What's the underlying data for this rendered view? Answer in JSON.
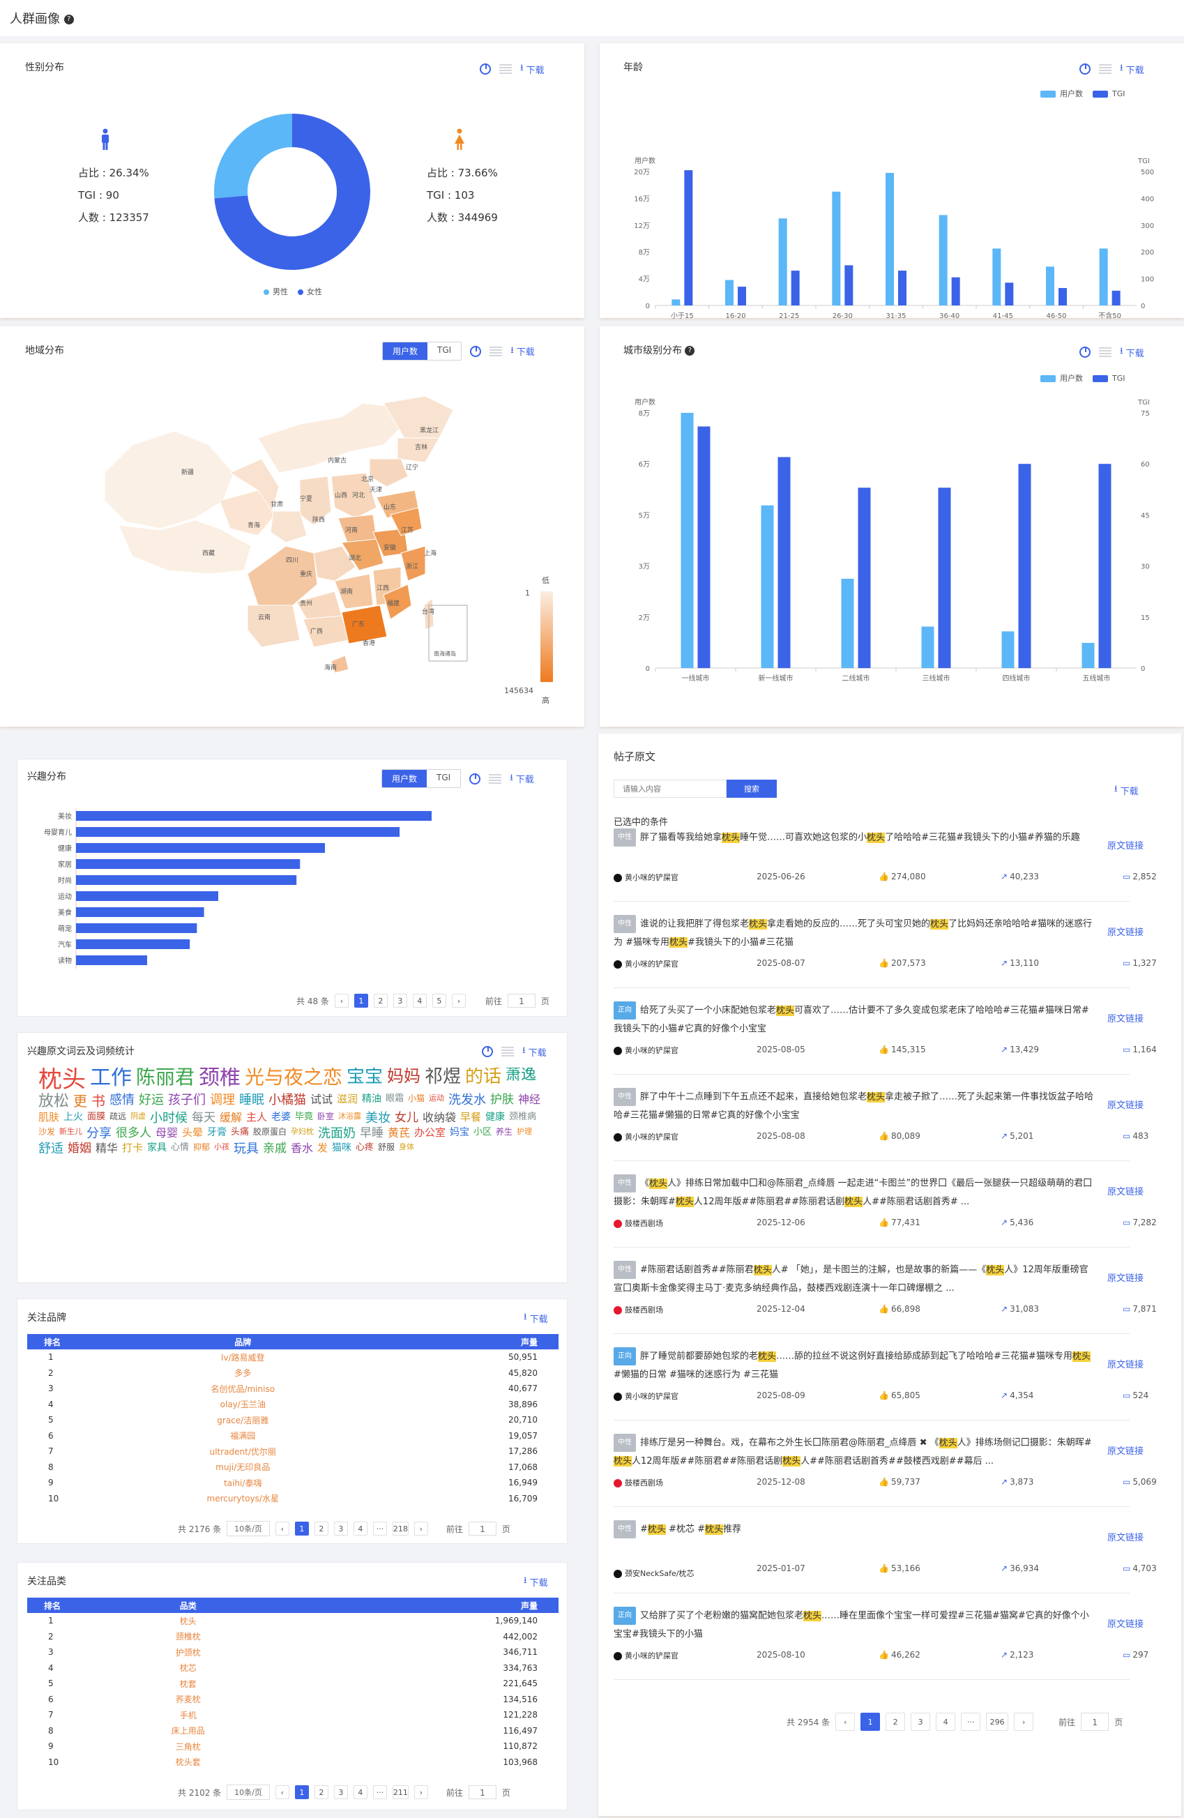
{
  "header": {
    "title": "人群画像",
    "help_icon": "question-circle-icon"
  },
  "common": {
    "download": "下载"
  },
  "gender": {
    "title": "性别分布",
    "male": {
      "share": "占比 : 26.34%",
      "tgi": "TGI : 90",
      "count": "人数 : 123357",
      "pct": 26.34,
      "color": "#5bb7f7"
    },
    "female": {
      "share": "占比 : 73.66%",
      "tgi": "TGI : 103",
      "count": "人数 : 344969",
      "pct": 73.66,
      "color": "#3b63e8"
    },
    "legend": [
      "男性",
      "女性"
    ]
  },
  "age": {
    "title": "年龄",
    "legend": [
      "用户数",
      "TGI"
    ],
    "y_left_label": "用户数",
    "y_right_label": "TGI",
    "y_left_ticks": [
      "0",
      "4万",
      "8万",
      "12万",
      "16万",
      "20万"
    ],
    "y_right_ticks": [
      "0",
      "100",
      "200",
      "300",
      "400",
      "500"
    ]
  },
  "region": {
    "title": "地域分布",
    "tabs": [
      "用户数",
      "TGI"
    ],
    "scale_low": "低",
    "scale_high": "高",
    "scale_min": "1",
    "scale_max": "145634",
    "provinces": [
      "新疆",
      "西藏",
      "青海",
      "甘肃",
      "宁夏",
      "内蒙古",
      "黑龙江",
      "吉林",
      "辽宁",
      "北京",
      "天津",
      "河北",
      "山西",
      "陕西",
      "山东",
      "河南",
      "四川",
      "重庆",
      "湖北",
      "安徽",
      "江苏",
      "上海",
      "浙江",
      "湖南",
      "江西",
      "贵州",
      "云南",
      "广西",
      "广东",
      "福建",
      "台湾",
      "海南",
      "香港"
    ],
    "inset": "南海诸岛"
  },
  "city_level": {
    "title": "城市级别分布",
    "legend": [
      "用户数",
      "TGI"
    ],
    "y_left_label": "用户数",
    "y_right_label": "TGI",
    "y_left_ticks": [
      "0",
      "2万",
      "3万",
      "5万",
      "6万",
      "8万"
    ],
    "y_right_ticks": [
      "0",
      "15",
      "30",
      "45",
      "60",
      "75"
    ]
  },
  "interest": {
    "title": "兴趣分布",
    "tabs": [
      "用户数",
      "TGI"
    ],
    "total": "共 48 条",
    "pages": [
      "1",
      "2",
      "3",
      "4",
      "5"
    ],
    "goto_label": "前往",
    "goto_value": "1",
    "page_unit": "页"
  },
  "wordcloud": {
    "title": "兴趣原文词云及词频统计",
    "words": [
      "枕头",
      "工作",
      "陈丽君",
      "颈椎",
      "光与夜之恋",
      "宝宝",
      "妈妈",
      "祁煜",
      "的话",
      "萧逸",
      "放松",
      "更",
      "书",
      "感情",
      "好运",
      "孩子们",
      "调理",
      "睡眠",
      "小橘猫",
      "试试",
      "滋润",
      "精油",
      "眼霜",
      "小猫",
      "运动",
      "洗发水",
      "护肤",
      "神经",
      "肌肤",
      "上火",
      "面膜",
      "疏远",
      "阴虚",
      "小时候",
      "每天",
      "缓解",
      "主人",
      "老婆",
      "毕竟",
      "卧室",
      "沐浴露",
      "美妆",
      "女儿",
      "收纳袋",
      "早餐",
      "健康",
      "颈椎病",
      "沙发",
      "新生儿",
      "分享",
      "很多人",
      "母婴",
      "头晕",
      "牙膏",
      "头痛",
      "胶原蛋白",
      "孕妇枕",
      "洗面奶",
      "早睡",
      "黄芪",
      "办公室",
      "妈宝",
      "小区",
      "养生",
      "护理",
      "舒适",
      "婚姻",
      "精华",
      "打卡",
      "家具",
      "心情",
      "抑郁",
      "小孩",
      "玩具",
      "亲戚",
      "香水",
      "发",
      "猫咪",
      "心疼",
      "舒服",
      "身体"
    ]
  },
  "brands": {
    "title": "关注品牌",
    "headers": [
      "排名",
      "品牌",
      "声量"
    ],
    "rows": [
      [
        "1",
        "lv/路易威登",
        "50,951"
      ],
      [
        "2",
        "多多",
        "45,820"
      ],
      [
        "3",
        "名创优品/miniso",
        "40,677"
      ],
      [
        "4",
        "olay/玉兰油",
        "38,896"
      ],
      [
        "5",
        "grace/洁丽雅",
        "20,710"
      ],
      [
        "6",
        "福满园",
        "19,057"
      ],
      [
        "7",
        "ultradent/优尔丽",
        "17,286"
      ],
      [
        "8",
        "muji/无印良品",
        "17,068"
      ],
      [
        "9",
        "taihi/泰嗨",
        "16,949"
      ],
      [
        "10",
        "mercurytoys/水星",
        "16,709"
      ]
    ],
    "total": "共 2176 条",
    "page_size": "10条/页",
    "pages": [
      "1",
      "2",
      "3",
      "4",
      "···",
      "218"
    ],
    "goto_label": "前往",
    "goto_value": "1",
    "page_unit": "页"
  },
  "categories": {
    "title": "关注品类",
    "headers": [
      "排名",
      "品类",
      "声量"
    ],
    "rows": [
      [
        "1",
        "枕头",
        "1,969,140"
      ],
      [
        "2",
        "颈椎枕",
        "442,002"
      ],
      [
        "3",
        "护颈枕",
        "346,711"
      ],
      [
        "4",
        "枕芯",
        "334,763"
      ],
      [
        "5",
        "枕套",
        "221,645"
      ],
      [
        "6",
        "荞麦枕",
        "134,516"
      ],
      [
        "7",
        "手机",
        "121,228"
      ],
      [
        "8",
        "床上用品",
        "116,497"
      ],
      [
        "9",
        "三角枕",
        "110,872"
      ],
      [
        "10",
        "枕头套",
        "103,968"
      ]
    ],
    "total": "共 2102 条",
    "page_size": "10条/页",
    "pages": [
      "1",
      "2",
      "3",
      "4",
      "···",
      "211"
    ],
    "goto_label": "前往",
    "goto_value": "1",
    "page_unit": "页"
  },
  "posts": {
    "title": "帖子原文",
    "search_placeholder": "请输入内容",
    "search_button": "搜索",
    "selected_label": "已选中的条件",
    "link_label": "原文链接",
    "items": [
      {
        "sentiment": "中性",
        "type": "neutral",
        "html": "胖了猫看等我给她拿<span class='hl'>枕头</span>睡午觉……可喜欢她这包浆的小<span class='hl'>枕头</span>了哈哈哈#三花猫#我镜头下的小猫#养猫的乐趣",
        "source": "黄小咪的铲屎官",
        "src": "douyin",
        "date": "2025-06-26",
        "likes": "274,080",
        "shares": "40,233",
        "comments": "2,852"
      },
      {
        "sentiment": "中性",
        "type": "neutral",
        "html": "谁说的让我把胖了得包浆老<span class='hl'>枕头</span>拿走看她的反应的……死了头可宝贝她的<span class='hl'>枕头</span>了比妈妈还亲哈哈哈#猫咪的迷惑行为 #猫咪专用<span class='hl'>枕头</span>#我镜头下的小猫#三花猫",
        "source": "黄小咪的铲屎官",
        "src": "douyin",
        "date": "2025-08-07",
        "likes": "207,573",
        "shares": "13,110",
        "comments": "1,327"
      },
      {
        "sentiment": "正向",
        "type": "positive",
        "html": "给死了头买了一个小床配她包浆老<span class='hl'>枕头</span>可喜欢了……估计要不了多久变成包浆老床了哈哈哈#三花猫#猫咪日常#我镜头下的小猫#它真的好像个小宝宝",
        "source": "黄小咪的铲屎官",
        "src": "douyin",
        "date": "2025-08-05",
        "likes": "145,315",
        "shares": "13,429",
        "comments": "1,164"
      },
      {
        "sentiment": "中性",
        "type": "neutral",
        "html": "胖了中午十二点睡到下午五点还不起来，直接给她包浆老<span class='hl'>枕头</span>拿走被子掀了……死了头起来第一件事找饭盆子哈哈哈#三花猫#懒猫的日常#它真的好像个小宝宝",
        "source": "黄小咪的铲屎官",
        "src": "douyin",
        "date": "2025-08-08",
        "likes": "80,089",
        "shares": "5,201",
        "comments": "483"
      },
      {
        "sentiment": "中性",
        "type": "neutral",
        "html": "《<span class='hl'>枕头</span>人》排练日常加载中囗和@陈丽君_点绛唇 一起走进“卡图兰”的世界囗《最后一张腿获一只超级萌萌的君囗摄影：朱朝晖#<span class='hl'>枕头</span>人12周年版##陈丽君##陈丽君话剧<span class='hl'>枕头</span>人##陈丽君话剧首秀# ...",
        "source": "鼓楼西剧场",
        "src": "weibo",
        "date": "2025-12-06",
        "likes": "77,431",
        "shares": "5,436",
        "comments": "7,282"
      },
      {
        "sentiment": "中性",
        "type": "neutral",
        "html": "#陈丽君话剧首秀##陈丽君<span class='hl'>枕头</span>人# 「她」，是卡图兰的注解，也是故事的新篇——《<span class='hl'>枕头</span>人》12周年版重磅官宣囗奥斯卡金像奖得主马丁·麦克多纳经典作品，鼓楼西戏剧连演十一年口碑爆棚之 ...",
        "source": "鼓楼西剧场",
        "src": "weibo",
        "date": "2025-12-04",
        "likes": "66,898",
        "shares": "31,083",
        "comments": "7,871"
      },
      {
        "sentiment": "正向",
        "type": "positive",
        "html": "胖了睡觉前都要舔她包浆的老<span class='hl'>枕头</span>……舔的拉丝不说这例好直接给舔成舔到起飞了哈哈哈#三花猫#猫咪专用<span class='hl'>枕头</span>#懒猫的日常 #猫咪的迷惑行为 #三花猫",
        "source": "黄小咪的铲屎官",
        "src": "douyin",
        "date": "2025-08-09",
        "likes": "65,805",
        "shares": "4,354",
        "comments": "524"
      },
      {
        "sentiment": "中性",
        "type": "neutral",
        "html": "排练厅是另一种舞台。戏，在幕布之外生长囗陈丽君@陈丽君_点绛唇 ✖ 《<span class='hl'>枕头</span>人》排练场侧记囗摄影：朱朝晖#<span class='hl'>枕头</span>人12周年版##陈丽君##陈丽君话剧<span class='hl'>枕头</span>人##陈丽君话剧首秀##鼓楼西戏剧##幕后 ...",
        "source": "鼓楼西剧场",
        "src": "weibo",
        "date": "2025-12-08",
        "likes": "59,737",
        "shares": "3,873",
        "comments": "5,069"
      },
      {
        "sentiment": "中性",
        "type": "neutral",
        "html": "#<span class='hl'>枕头</span> #枕芯 #<span class='hl'>枕头</span>推荐",
        "source": "颈安NeckSafe/枕芯",
        "src": "douyin",
        "date": "2025-01-07",
        "likes": "53,166",
        "shares": "36,934",
        "comments": "4,703"
      },
      {
        "sentiment": "正向",
        "type": "positive",
        "html": "又给胖了买了个老粉嫩的猫窝配她包浆老<span class='hl'>枕头</span>……睡在里面像个宝宝一样可爱捏#三花猫#猫窝#它真的好像个小宝宝#我镜头下的小猫",
        "source": "黄小咪的铲屎官",
        "src": "douyin",
        "date": "2025-08-10",
        "likes": "46,262",
        "shares": "2,123",
        "comments": "297"
      }
    ],
    "total": "共 2954 条",
    "pages": [
      "1",
      "2",
      "3",
      "4",
      "···",
      "296"
    ],
    "goto_label": "前往",
    "goto_value": "1",
    "page_unit": "页"
  },
  "chart_data": [
    {
      "type": "bar",
      "title": "年龄",
      "categories": [
        "小于15",
        "16-20",
        "21-25",
        "26-30",
        "31-35",
        "36-40",
        "41-45",
        "46-50",
        "不含50"
      ],
      "series": [
        {
          "name": "用户数",
          "axis": "left",
          "color": "#5bb7f7",
          "values": [
            9000,
            38000,
            130000,
            170000,
            198000,
            135000,
            85000,
            58000,
            85000
          ]
        },
        {
          "name": "TGI",
          "axis": "right",
          "color": "#3b63e8",
          "values": [
            505,
            70,
            130,
            150,
            130,
            105,
            85,
            65,
            55
          ]
        }
      ],
      "ylim_left": [
        0,
        200000
      ],
      "ylim_right": [
        0,
        500
      ]
    },
    {
      "type": "bar",
      "title": "城市级别分布",
      "categories": [
        "一线城市",
        "新一线城市",
        "二线城市",
        "三线城市",
        "四线城市",
        "五线城市"
      ],
      "series": [
        {
          "name": "用户数",
          "axis": "left",
          "color": "#5bb7f7",
          "values": [
            80000,
            51000,
            28000,
            13000,
            11500,
            7900
          ]
        },
        {
          "name": "TGI",
          "axis": "right",
          "color": "#3b63e8",
          "values": [
            71,
            62,
            53,
            53,
            60,
            60
          ]
        }
      ],
      "ylim_left": [
        0,
        80000
      ],
      "ylim_right": [
        0,
        75
      ]
    },
    {
      "type": "bar",
      "title": "兴趣分布",
      "categories": [
        "美妆",
        "母婴育儿",
        "健康",
        "家居",
        "时尚",
        "运动",
        "美食",
        "萌宠",
        "汽车",
        "读物"
      ],
      "values": [
        100,
        91,
        70,
        63,
        62,
        40,
        36,
        34,
        32,
        20
      ],
      "orientation": "horizontal"
    }
  ]
}
